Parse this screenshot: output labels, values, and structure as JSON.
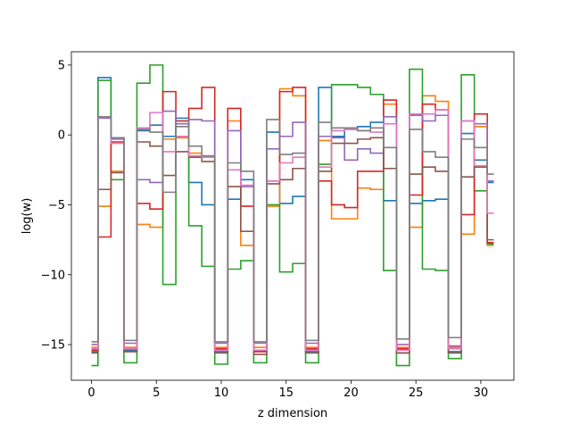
{
  "chart_data": {
    "type": "line",
    "drawstyle": "steps-mid",
    "title": "",
    "xlabel": "z dimension",
    "ylabel": "log(w)",
    "xlim": [
      -1.55,
      32.55
    ],
    "ylim": [
      -17.55,
      5.95
    ],
    "xticks": [
      0,
      5,
      10,
      15,
      20,
      25,
      30
    ],
    "yticks": [
      5,
      0,
      -5,
      -10,
      -15
    ],
    "ytick_labels": [
      "5",
      "0",
      "−5",
      "−10",
      "−15"
    ],
    "grid": false,
    "x": [
      0,
      1,
      2,
      3,
      4,
      5,
      6,
      7,
      8,
      9,
      10,
      11,
      12,
      13,
      14,
      15,
      16,
      17,
      18,
      19,
      20,
      21,
      22,
      23,
      24,
      25,
      26,
      27,
      28,
      29,
      30,
      31
    ],
    "series": [
      {
        "color": "#1f77b4",
        "values": [
          -15.5,
          4.1,
          -0.2,
          -15.4,
          0.3,
          0.7,
          -0.1,
          1.2,
          -3.4,
          -5.0,
          -15.5,
          -4.6,
          -3.2,
          -15.5,
          0.2,
          -4.9,
          -4.4,
          -15.5,
          3.4,
          -0.1,
          0.4,
          0.6,
          0.9,
          -4.7,
          -15.6,
          -4.9,
          -4.7,
          -4.6,
          -15.5,
          0.1,
          -1.8,
          -3.4
        ]
      },
      {
        "color": "#ff7f0e",
        "values": [
          -15.2,
          -5.1,
          -2.6,
          -15.2,
          -6.4,
          -6.6,
          -0.3,
          -0.2,
          -1.3,
          -1.5,
          -15.2,
          1.0,
          -7.9,
          -15.2,
          -5.1,
          3.3,
          2.8,
          -15.2,
          -0.4,
          -6.0,
          -6.0,
          -3.8,
          -3.9,
          2.2,
          -15.2,
          -6.6,
          2.8,
          2.4,
          -15.2,
          -7.1,
          0.6,
          -7.9
        ]
      },
      {
        "color": "#2ca02c",
        "values": [
          -16.5,
          3.9,
          -3.2,
          -16.3,
          3.7,
          5.0,
          -10.7,
          1.0,
          -6.5,
          -9.4,
          -16.4,
          -9.6,
          -9.0,
          -16.3,
          -5.0,
          -9.8,
          -9.2,
          -16.3,
          -2.1,
          3.6,
          3.6,
          3.4,
          2.9,
          -9.7,
          -16.5,
          4.7,
          -9.6,
          -9.7,
          -16.0,
          4.3,
          -4.0,
          -7.8
        ]
      },
      {
        "color": "#d62728",
        "values": [
          -15.4,
          -7.3,
          -0.5,
          -15.5,
          -4.9,
          -5.3,
          3.1,
          1.0,
          1.9,
          3.4,
          -15.3,
          1.9,
          -5.1,
          -15.5,
          -3.3,
          3.1,
          3.4,
          -15.3,
          -3.3,
          -5.0,
          -5.2,
          -2.6,
          -2.6,
          2.5,
          -15.3,
          -4.3,
          2.2,
          1.8,
          -15.1,
          -5.7,
          1.5,
          -7.7
        ]
      },
      {
        "color": "#9467bd",
        "values": [
          -15.0,
          1.2,
          -0.3,
          -14.9,
          -3.2,
          -3.4,
          1.7,
          0.8,
          1.1,
          1.0,
          -14.9,
          0.3,
          -3.7,
          -14.9,
          -1.0,
          -0.1,
          0.9,
          -14.9,
          -0.1,
          -0.2,
          -1.8,
          -1.0,
          -1.3,
          1.3,
          -15.0,
          1.4,
          1.0,
          1.4,
          -15.1,
          1.0,
          0.8,
          -3.3
        ]
      },
      {
        "color": "#8c564b",
        "values": [
          -15.6,
          -3.9,
          -2.7,
          -15.5,
          -0.5,
          -0.8,
          -2.9,
          -1.2,
          -1.6,
          -1.9,
          -15.6,
          -3.7,
          -6.9,
          -15.7,
          -3.5,
          -3.2,
          -2.4,
          -15.6,
          -2.6,
          -0.6,
          -0.6,
          -0.3,
          -0.2,
          -2.4,
          -15.6,
          -2.8,
          -2.3,
          -2.6,
          -15.6,
          -3.0,
          -2.3,
          -7.5
        ]
      },
      {
        "color": "#e377c2",
        "values": [
          -15.3,
          1.3,
          -0.6,
          -15.3,
          0.5,
          1.6,
          -1.2,
          -0.1,
          -1.5,
          -1.6,
          -15.4,
          -2.5,
          -3.6,
          -15.4,
          -3.3,
          -2.0,
          -1.6,
          -15.4,
          -2.3,
          0.3,
          0.4,
          0.3,
          0.2,
          0.8,
          -15.4,
          1.5,
          1.5,
          1.8,
          -15.3,
          1.0,
          -2.2,
          -5.6
        ]
      },
      {
        "color": "#7f7f7f",
        "values": [
          -14.8,
          1.3,
          -0.2,
          -14.7,
          0.4,
          0.2,
          -4.1,
          0.6,
          -0.8,
          -1.5,
          -14.8,
          -2.0,
          -2.6,
          -14.8,
          1.1,
          -1.4,
          -1.3,
          -14.7,
          0.9,
          0.5,
          0.5,
          0.3,
          0.5,
          -0.9,
          -14.6,
          0.4,
          -1.2,
          -1.6,
          -14.5,
          -0.3,
          -0.9,
          -2.8
        ]
      }
    ]
  }
}
